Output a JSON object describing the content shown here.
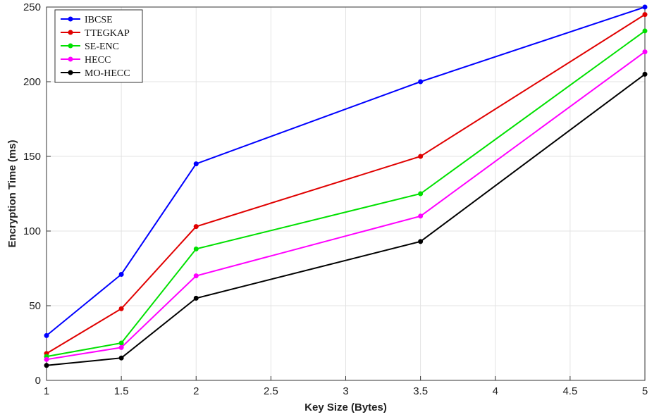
{
  "chart_data": {
    "type": "line",
    "xlabel": "Key Size (Bytes)",
    "ylabel": "Encryption Time (ms)",
    "xlim": [
      1,
      5
    ],
    "ylim": [
      0,
      250
    ],
    "xticks": [
      "1",
      "1.5",
      "2",
      "2.5",
      "3",
      "3.5",
      "4",
      "4.5",
      "5"
    ],
    "yticks": [
      "0",
      "50",
      "100",
      "150",
      "200",
      "250"
    ],
    "grid": true,
    "legend_position": "top-left",
    "x": [
      1,
      1.5,
      2,
      3.5,
      5
    ],
    "series": [
      {
        "name": "IBCSE",
        "color": "#0000ff",
        "values": [
          30,
          71,
          145,
          200,
          250
        ]
      },
      {
        "name": "TTEGKAP",
        "color": "#e00000",
        "values": [
          18,
          48,
          103,
          150,
          245
        ]
      },
      {
        "name": "SE-ENC",
        "color": "#00e000",
        "values": [
          16,
          25,
          88,
          125,
          234
        ]
      },
      {
        "name": "HECC",
        "color": "#ff00ff",
        "values": [
          14,
          22,
          70,
          110,
          220
        ]
      },
      {
        "name": "MO-HECC",
        "color": "#000000",
        "values": [
          10,
          15,
          55,
          93,
          205
        ]
      }
    ]
  }
}
